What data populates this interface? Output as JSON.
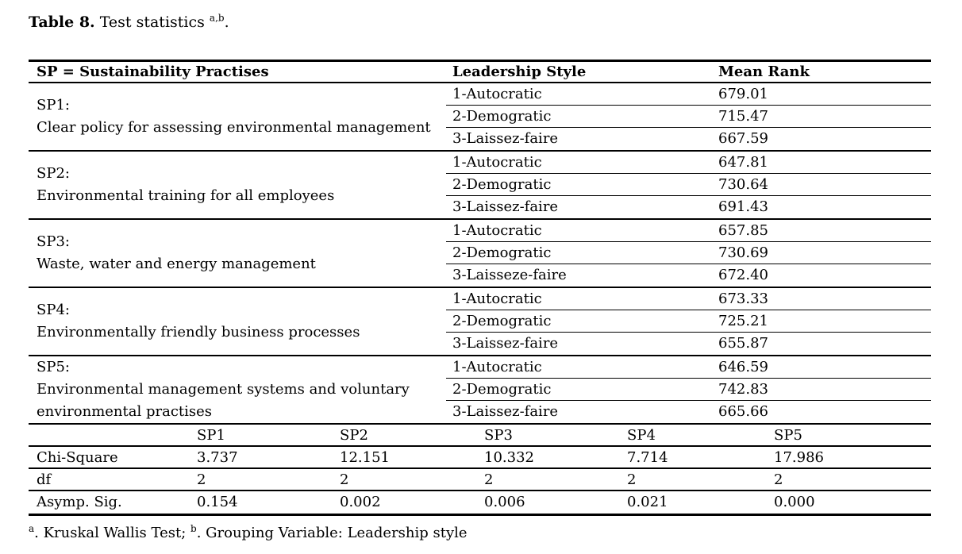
{
  "colors": {
    "text": "#000000",
    "background": "#ffffff",
    "rule": "#000000"
  },
  "title": {
    "label_bold": "Table 8.",
    "label_rest": " Test statistics ",
    "superscript": "a,b",
    "period": "."
  },
  "main_table": {
    "headers": [
      "SP = Sustainability Practises",
      "Leadership Style",
      "Mean Rank"
    ],
    "groups": [
      {
        "sp_id": "SP1:",
        "sp_desc": "Clear policy for assessing environmental management",
        "rows": [
          {
            "style": "1-Autocratic",
            "mean_rank": "679.01"
          },
          {
            "style": "2-Demogratic",
            "mean_rank": "715.47"
          },
          {
            "style": "3-Laissez-faire",
            "mean_rank": "667.59"
          }
        ]
      },
      {
        "sp_id": "SP2:",
        "sp_desc": "Environmental training for all employees",
        "rows": [
          {
            "style": "1-Autocratic",
            "mean_rank": "647.81"
          },
          {
            "style": "2-Demogratic",
            "mean_rank": "730.64"
          },
          {
            "style": "3-Laissez-faire",
            "mean_rank": "691.43"
          }
        ]
      },
      {
        "sp_id": "SP3:",
        "sp_desc": "Waste, water and energy management",
        "rows": [
          {
            "style": "1-Autocratic",
            "mean_rank": "657.85"
          },
          {
            "style": "2-Demogratic",
            "mean_rank": "730.69"
          },
          {
            "style": "3-Laisseze-faire",
            "mean_rank": "672.40"
          }
        ]
      },
      {
        "sp_id": "SP4:",
        "sp_desc": "Environmentally friendly business processes",
        "rows": [
          {
            "style": "1-Autocratic",
            "mean_rank": "673.33"
          },
          {
            "style": "2-Demogratic",
            "mean_rank": "725.21"
          },
          {
            "style": "3-Laissez-faire",
            "mean_rank": "655.87"
          }
        ]
      },
      {
        "sp_id": "SP5:",
        "sp_desc": "Environmental management systems and voluntary environmental practises",
        "rows": [
          {
            "style": "1-Autocratic",
            "mean_rank": "646.59"
          },
          {
            "style": "2-Demogratic",
            "mean_rank": "742.83"
          },
          {
            "style": "3-Laissez-faire",
            "mean_rank": "665.66"
          }
        ]
      }
    ]
  },
  "stats_table": {
    "columns": [
      "",
      "SP1",
      "SP2",
      "SP3",
      "SP4",
      "SP5"
    ],
    "rows": [
      {
        "label": "Chi-Square",
        "values": [
          "3.737",
          "12.151",
          "10.332",
          "7.714",
          "17.986"
        ]
      },
      {
        "label": "df",
        "values": [
          "2",
          "2",
          "2",
          "2",
          "2"
        ]
      },
      {
        "label": "Asymp. Sig.",
        "values": [
          "0.154",
          "0.002",
          "0.006",
          "0.021",
          "0.000"
        ]
      }
    ]
  },
  "footnote": {
    "sup_a": "a",
    "text_a": ". Kruskal Wallis Test; ",
    "sup_b": "b",
    "text_b": ". Grouping Variable: Leadership style"
  }
}
